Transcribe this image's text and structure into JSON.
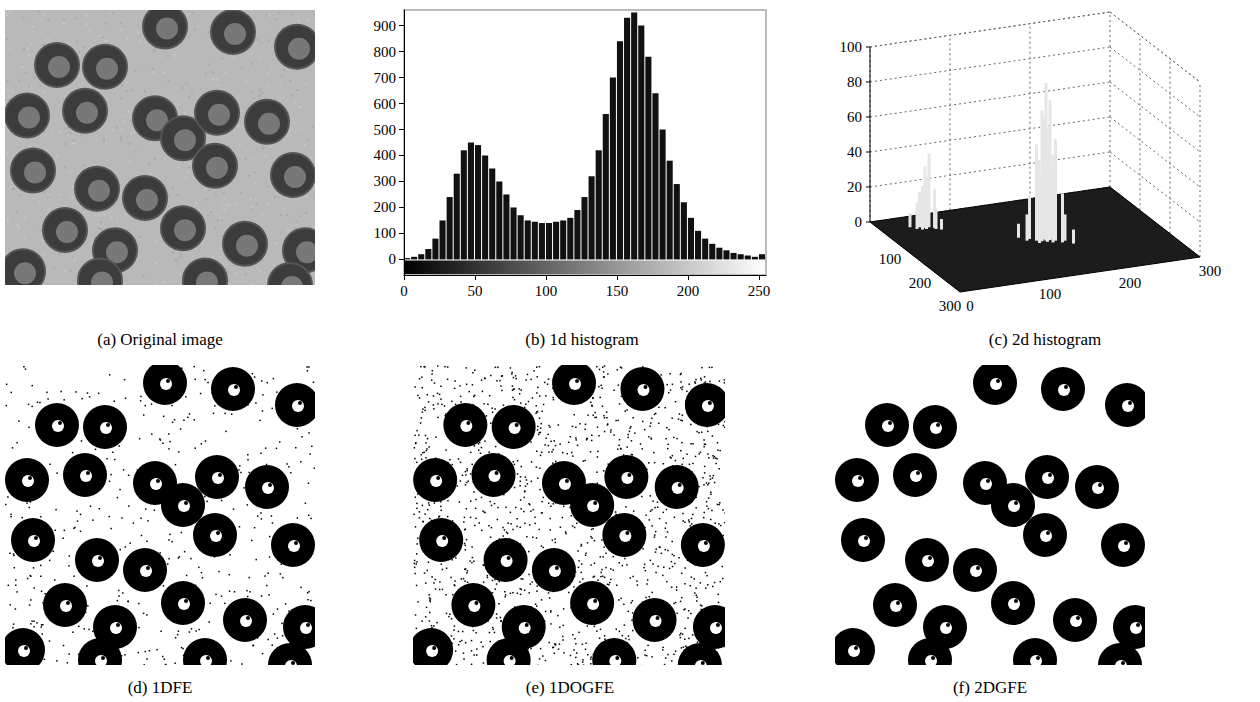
{
  "images": [
    {
      "caption": "(a) Original image",
      "kind": "grayscale"
    },
    {
      "caption": "(d) 1DFE",
      "kind": "binary_noisy"
    },
    {
      "caption": "(e) 1DOGFE",
      "kind": "binary_very_noisy"
    },
    {
      "caption": "(f) 2DGFE",
      "kind": "binary_clean"
    }
  ],
  "chart_data": [
    {
      "type": "histogram",
      "caption": "(b) 1d histogram",
      "color": "#111111",
      "bins": [
        0,
        5,
        10,
        15,
        20,
        25,
        30,
        35,
        40,
        45,
        50,
        55,
        60,
        65,
        70,
        75,
        80,
        85,
        90,
        95,
        100,
        105,
        110,
        115,
        120,
        125,
        130,
        135,
        140,
        145,
        150,
        155,
        160,
        165,
        170,
        175,
        180,
        185,
        190,
        195,
        200,
        205,
        210,
        215,
        220,
        225,
        230,
        235,
        240,
        245,
        250,
        255
      ],
      "counts": [
        5,
        10,
        20,
        40,
        80,
        150,
        240,
        330,
        420,
        450,
        440,
        400,
        350,
        300,
        250,
        200,
        170,
        150,
        145,
        140,
        140,
        145,
        150,
        160,
        190,
        240,
        320,
        420,
        560,
        700,
        840,
        930,
        950,
        900,
        780,
        640,
        500,
        380,
        290,
        220,
        160,
        110,
        80,
        60,
        45,
        35,
        25,
        20,
        15,
        10,
        20
      ],
      "xlim": [
        0,
        255
      ],
      "xticks": [
        0,
        50,
        100,
        150,
        200,
        250
      ],
      "ylim": [
        -60,
        960
      ],
      "yticks": [
        0,
        100,
        200,
        300,
        400,
        500,
        600,
        700,
        800,
        900
      ],
      "grid": false
    },
    {
      "type": "surface3d",
      "caption": "(c) 2d histogram",
      "color": "#e6e6e6",
      "points": [
        [
          45,
          45,
          20
        ],
        [
          50,
          50,
          35
        ],
        [
          55,
          50,
          42
        ],
        [
          50,
          55,
          30
        ],
        [
          45,
          55,
          25
        ],
        [
          55,
          45,
          28
        ],
        [
          60,
          55,
          22
        ],
        [
          40,
          50,
          15
        ],
        [
          50,
          40,
          18
        ],
        [
          60,
          60,
          12
        ],
        [
          35,
          40,
          8
        ],
        [
          65,
          65,
          6
        ],
        [
          160,
          160,
          90
        ],
        [
          155,
          160,
          75
        ],
        [
          165,
          160,
          80
        ],
        [
          160,
          155,
          70
        ],
        [
          160,
          165,
          65
        ],
        [
          150,
          155,
          55
        ],
        [
          170,
          165,
          58
        ],
        [
          155,
          150,
          45
        ],
        [
          165,
          170,
          50
        ],
        [
          150,
          165,
          40
        ],
        [
          170,
          155,
          42
        ],
        [
          145,
          145,
          25
        ],
        [
          175,
          175,
          28
        ],
        [
          140,
          150,
          15
        ],
        [
          180,
          170,
          15
        ],
        [
          135,
          135,
          8
        ],
        [
          185,
          185,
          8
        ]
      ],
      "xlim": [
        0,
        300
      ],
      "xticks": [
        0,
        100,
        200,
        300
      ],
      "ylim": [
        0,
        300
      ],
      "yticks": [
        100,
        200,
        300
      ],
      "zlim": [
        0,
        100
      ],
      "zticks": [
        0,
        20,
        40,
        60,
        80,
        100
      ],
      "grid": true
    }
  ]
}
